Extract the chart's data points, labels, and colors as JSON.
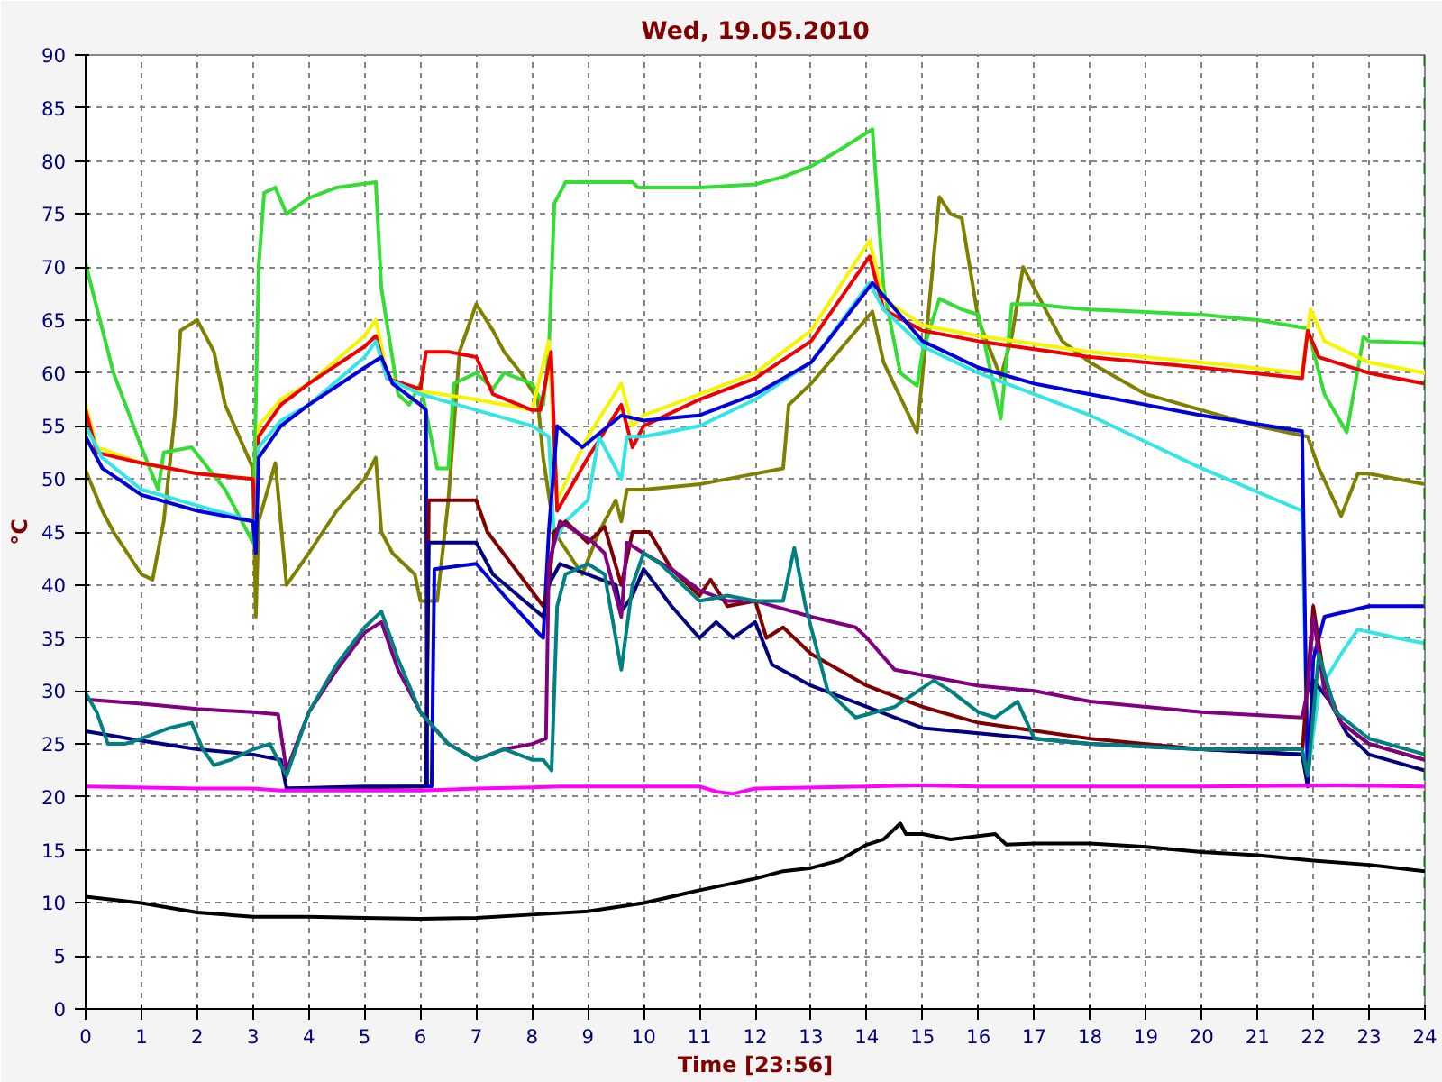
{
  "chart_data": {
    "type": "line",
    "title": "Wed, 19.05.2010",
    "xlabel": "Time [23:56]",
    "ylabel": "°C",
    "xlim": [
      0,
      24
    ],
    "ylim": [
      0,
      90
    ],
    "xticks": [
      0,
      1,
      2,
      3,
      4,
      5,
      6,
      7,
      8,
      9,
      10,
      11,
      12,
      13,
      14,
      15,
      16,
      17,
      18,
      19,
      20,
      21,
      22,
      23,
      24
    ],
    "yticks": [
      0,
      5,
      10,
      15,
      20,
      25,
      30,
      35,
      40,
      45,
      50,
      55,
      60,
      65,
      70,
      75,
      80,
      85,
      90
    ],
    "grid": true,
    "marker": "none",
    "line_style": "solid",
    "ref_lines": [
      {
        "axis": "x",
        "value": 24,
        "color": "#008000",
        "line_style": "dashed"
      }
    ],
    "series": [
      {
        "color": "#808000",
        "x": [
          0,
          0.3,
          0.5,
          1.0,
          1.2,
          1.4,
          1.6,
          1.7,
          2.0,
          2.3,
          2.5,
          3.0,
          3.05,
          3.1,
          3.4,
          3.6,
          4.0,
          4.5,
          5.0,
          5.2,
          5.3,
          5.5,
          5.9,
          6.0,
          6.3,
          6.5,
          6.7,
          7.0,
          7.3,
          7.5,
          7.8,
          8.1,
          8.2,
          8.4,
          8.9,
          9.2,
          9.5,
          9.6,
          9.7,
          10,
          11,
          12,
          12.5,
          12.6,
          13,
          14.1,
          14.3,
          14.9,
          15.3,
          15.5,
          15.7,
          16,
          16.4,
          16.6,
          16.8,
          17,
          17.5,
          18,
          19,
          20,
          21,
          21.9,
          22.1,
          22.5,
          22.8,
          23,
          23.5,
          24
        ],
        "values": [
          50.8,
          47,
          45,
          41,
          40.5,
          46,
          56,
          64,
          65,
          62,
          57,
          51,
          37,
          46,
          51.5,
          40,
          43,
          47,
          50,
          52,
          45,
          43,
          41,
          38.5,
          38.5,
          48,
          62,
          66.5,
          64,
          62,
          60,
          57.5,
          52,
          45,
          41,
          45,
          48,
          46,
          49,
          49,
          49.5,
          50.5,
          51,
          57,
          59,
          65.8,
          61,
          54.4,
          76.6,
          75,
          74.6,
          65,
          59.6,
          63.5,
          70,
          68,
          63,
          61,
          58,
          56.5,
          55,
          54,
          51,
          46.5,
          50.5,
          50.5,
          50,
          49.5
        ]
      },
      {
        "color": "#33dd33",
        "x": [
          0,
          0.5,
          1.0,
          1.3,
          1.4,
          1.9,
          2.5,
          3.0,
          3.1,
          3.2,
          3.4,
          3.6,
          4.0,
          4.5,
          5.2,
          5.3,
          5.6,
          5.8,
          6.0,
          6.3,
          6.5,
          6.6,
          7.0,
          7.3,
          7.5,
          8.0,
          8.2,
          8.3,
          8.4,
          8.6,
          9.0,
          9.8,
          9.9,
          11,
          12,
          12.5,
          13,
          13.5,
          14.1,
          14.3,
          14.6,
          14.9,
          15.0,
          15.3,
          15.7,
          16.0,
          16.4,
          16.6,
          17,
          17.5,
          18,
          20,
          21,
          21.9,
          22.2,
          22.6,
          22.9,
          23,
          24
        ],
        "values": [
          70.3,
          60,
          53,
          49,
          52.5,
          53,
          49,
          44,
          70,
          77,
          77.5,
          75,
          76.5,
          77.5,
          78,
          68,
          58,
          57,
          59,
          51,
          51,
          59,
          60,
          58.5,
          60,
          59,
          57,
          62,
          76,
          78,
          78,
          78,
          77.5,
          77.5,
          77.8,
          78.5,
          79.5,
          81,
          83,
          68,
          60,
          58.8,
          62,
          67,
          66,
          65.5,
          55.7,
          66.5,
          66.5,
          66.2,
          66,
          65.5,
          65,
          64.2,
          58,
          54.4,
          63.4,
          63,
          62.8
        ]
      },
      {
        "color": "#f5f500",
        "x": [
          0,
          0.2,
          1,
          2,
          3,
          3.05,
          3.1,
          3.5,
          4,
          5,
          5.2,
          5.4,
          5.6,
          6,
          7,
          8,
          8.3,
          8.45,
          9.0,
          9.6,
          9.8,
          10,
          11,
          12,
          13,
          14.05,
          14.3,
          15,
          16,
          18,
          20,
          21.8,
          21.95,
          22.2,
          23,
          24
        ],
        "values": [
          57,
          53,
          51.5,
          50.5,
          50,
          46,
          55,
          57.5,
          59,
          63.5,
          65,
          60,
          59,
          58.3,
          57.5,
          56.5,
          63,
          48,
          54,
          59,
          55,
          56,
          58,
          60,
          64,
          72.5,
          67,
          64.5,
          63.5,
          62,
          61,
          60,
          66,
          63,
          61,
          60
        ]
      },
      {
        "color": "#ee0000",
        "x": [
          0,
          0.2,
          1,
          2,
          3,
          3.05,
          3.1,
          3.5,
          4,
          5,
          5.2,
          5.4,
          6,
          6.1,
          6.5,
          7,
          7.3,
          8,
          8.15,
          8.34,
          8.45,
          9,
          9.6,
          9.8,
          10,
          11,
          12,
          13,
          14.05,
          14.3,
          15,
          16,
          18,
          20,
          21.8,
          21.9,
          22.1,
          23,
          24
        ],
        "values": [
          56.5,
          52.5,
          51.5,
          50.5,
          50,
          44,
          54,
          57,
          59,
          62.5,
          63.5,
          59.5,
          58.5,
          62,
          62,
          61.5,
          58,
          56.5,
          56.5,
          62,
          47,
          52,
          57,
          53,
          55,
          57.5,
          59.5,
          63,
          71,
          66,
          64,
          63,
          61.5,
          60.5,
          59.5,
          64,
          61.5,
          60,
          59
        ]
      },
      {
        "color": "#33e5e5",
        "x": [
          0,
          0.3,
          1,
          2,
          3,
          3.05,
          3.1,
          3.5,
          4,
          5,
          5.2,
          5.4,
          6,
          7,
          8,
          8.3,
          8.4,
          8.6,
          9.0,
          9.2,
          9.6,
          9.7,
          10.0,
          11,
          12,
          13,
          14.05,
          14.3,
          15,
          16,
          18,
          20,
          21.8,
          21.9,
          22.1,
          22.5,
          22.8,
          23.5,
          24
        ],
        "values": [
          55,
          52,
          49,
          47.5,
          46,
          44.5,
          53,
          55.5,
          57,
          61.5,
          63,
          59.5,
          58,
          56.5,
          55,
          54,
          44,
          46,
          48,
          54,
          50,
          54,
          54,
          55,
          57.5,
          61,
          68.5,
          66,
          62.5,
          60,
          56,
          51,
          47,
          22,
          30,
          33.5,
          35.8,
          35,
          34.5
        ]
      },
      {
        "color": "#0000dd",
        "x": [
          0,
          0.3,
          1,
          2,
          3,
          3.05,
          3.1,
          3.5,
          4,
          5,
          5.3,
          5.5,
          6,
          6.1,
          6.12,
          6.2,
          6.25,
          7.0,
          7.5,
          8.2,
          8.3,
          8.45,
          8.9,
          9.6,
          10,
          11,
          12,
          13,
          14.1,
          15,
          16,
          17,
          18,
          20,
          21.8,
          21.9,
          22.0,
          22.2,
          23,
          24
        ],
        "values": [
          54,
          51,
          48.5,
          47,
          46,
          43,
          52,
          55,
          57,
          60.5,
          61.5,
          59,
          57,
          56.5,
          21,
          21,
          41.5,
          42,
          39,
          35,
          45,
          55,
          53,
          56,
          55.5,
          56,
          58,
          61,
          68.5,
          63,
          60.5,
          59,
          58,
          56,
          54.5,
          21,
          33,
          37,
          38,
          38
        ]
      },
      {
        "color": "#800000",
        "x": [
          3.6,
          6.1,
          6.15,
          6.5,
          7.0,
          7.2,
          8.2,
          8.3,
          8.4,
          8.6,
          9,
          9.3,
          9.6,
          9.8,
          10.1,
          10.5,
          11,
          11.2,
          11.5,
          12,
          12.2,
          12.5,
          13,
          14,
          15,
          16,
          18,
          20,
          21.8,
          21.9,
          22.0,
          22.2,
          22.5,
          23,
          24
        ],
        "values": [
          20.8,
          21,
          48,
          48,
          48,
          45,
          38,
          40,
          45,
          46,
          44,
          45.5,
          40,
          45,
          45,
          41.5,
          39,
          40.5,
          38,
          38.5,
          35,
          36,
          33.5,
          30.5,
          28.5,
          27,
          25.5,
          24.5,
          24,
          31,
          38,
          31,
          27,
          25,
          23.5
        ]
      },
      {
        "color": "#000080",
        "x": [
          0,
          1,
          2,
          3,
          3.5,
          3.6,
          5,
          6.1,
          6.15,
          7.0,
          7.3,
          8.2,
          8.3,
          8.5,
          9.0,
          9.5,
          9.6,
          9.8,
          10.0,
          10.5,
          11,
          11.3,
          11.6,
          12,
          12.3,
          13,
          14,
          15,
          16,
          18,
          20,
          21.8,
          21.9,
          22.0,
          22.3,
          22.6,
          23,
          24
        ],
        "values": [
          26.2,
          25.3,
          24.5,
          24,
          23.5,
          20.8,
          21,
          21,
          44,
          44,
          41,
          37,
          40,
          42,
          41,
          40,
          37.5,
          39,
          41.5,
          38,
          35,
          36.5,
          35,
          36.5,
          32.5,
          30.5,
          28.5,
          26.5,
          26,
          25,
          24.5,
          24,
          21,
          31,
          29,
          26,
          24,
          22.5
        ]
      },
      {
        "color": "#800080",
        "x": [
          0,
          1,
          2,
          3,
          3.45,
          3.6,
          4,
          4.5,
          5.0,
          5.3,
          5.6,
          6.0,
          6.5,
          7,
          7.5,
          8.0,
          8.25,
          8.3,
          8.5,
          8.8,
          9.1,
          9.3,
          9.6,
          9.7,
          10,
          10.5,
          11,
          11.5,
          12,
          13,
          13.8,
          14,
          14.5,
          15,
          16,
          17,
          18,
          20,
          21.8,
          21.9,
          22.0,
          22.2,
          22.5,
          23,
          24
        ],
        "values": [
          29.2,
          28.8,
          28.3,
          28,
          27.8,
          22.5,
          28,
          32,
          35.5,
          36.5,
          32,
          28,
          25,
          23.5,
          24.5,
          25,
          25.5,
          42,
          46,
          45,
          44,
          43,
          37,
          44,
          43,
          41.5,
          39.5,
          38.5,
          38.5,
          37,
          36,
          35,
          32,
          31.5,
          30.5,
          30,
          29,
          28,
          27.5,
          30,
          37,
          30,
          27,
          25,
          23.5
        ]
      },
      {
        "color": "#008080",
        "x": [
          0,
          0.2,
          0.4,
          0.7,
          1,
          1.5,
          1.9,
          2.1,
          2.3,
          2.6,
          3,
          3.3,
          3.5,
          3.6,
          4,
          4.5,
          5,
          5.3,
          5.6,
          6.0,
          6.5,
          7,
          7.5,
          8.0,
          8.2,
          8.35,
          8.45,
          8.6,
          9,
          9.3,
          9.6,
          9.8,
          10,
          10.3,
          11,
          11.5,
          12,
          12.5,
          12.7,
          12.9,
          13.3,
          13.8,
          14.5,
          15.2,
          15.5,
          16,
          16.3,
          16.7,
          17,
          18,
          20,
          21.8,
          21.9,
          22.1,
          22.4,
          23,
          24
        ],
        "values": [
          29.8,
          28,
          25,
          25,
          25.5,
          26.5,
          27,
          24.5,
          23,
          23.5,
          24.5,
          25,
          23,
          22,
          28,
          32.5,
          36,
          37.5,
          33,
          28,
          25,
          23.5,
          24.5,
          23.5,
          23.5,
          22.5,
          38,
          41,
          42,
          41,
          32,
          40,
          43,
          42,
          38.5,
          39,
          38.5,
          38.5,
          43.5,
          38,
          30,
          27.5,
          28.5,
          31,
          30,
          28,
          27.5,
          29,
          25.5,
          25,
          24.5,
          24.5,
          22,
          33.5,
          28,
          25.5,
          24
        ]
      },
      {
        "color": "#ff00ff",
        "x": [
          0,
          2,
          3,
          3.5,
          6,
          7,
          8,
          8.5,
          10,
          11,
          11.3,
          11.6,
          12,
          14,
          15,
          16,
          20,
          22.5,
          24
        ],
        "values": [
          21,
          20.8,
          20.8,
          20.6,
          20.6,
          20.8,
          20.9,
          21,
          21,
          21,
          20.5,
          20.3,
          20.8,
          21,
          21.1,
          21,
          21,
          21.1,
          21
        ]
      },
      {
        "color": "#000000",
        "x": [
          0,
          0.5,
          1,
          2,
          3,
          4,
          5,
          6,
          7,
          8,
          9,
          10,
          11,
          12,
          12.5,
          13,
          13.5,
          14,
          14.3,
          14.6,
          14.7,
          15,
          15.5,
          16.3,
          16.5,
          17,
          18,
          19,
          20,
          21,
          22,
          23,
          24
        ],
        "values": [
          10.6,
          10.3,
          10,
          9.1,
          8.7,
          8.7,
          8.6,
          8.5,
          8.6,
          8.9,
          9.2,
          10,
          11.2,
          12.3,
          13,
          13.3,
          14,
          15.5,
          16,
          17.5,
          16.5,
          16.5,
          16,
          16.5,
          15.5,
          15.6,
          15.6,
          15.3,
          14.8,
          14.5,
          14,
          13.6,
          13
        ]
      }
    ]
  }
}
